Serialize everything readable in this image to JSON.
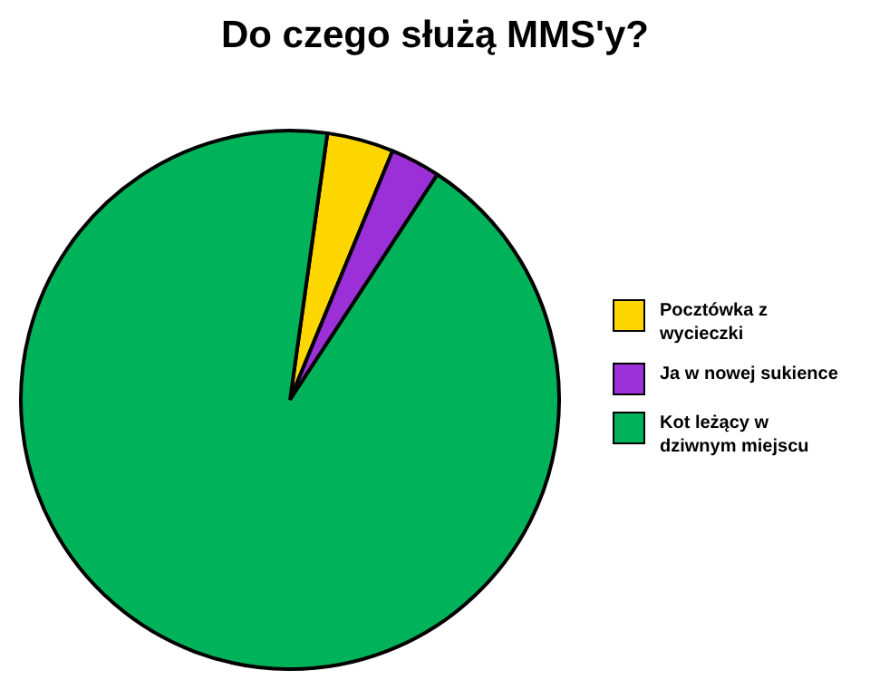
{
  "chart_data": {
    "type": "pie",
    "title": "Do czego służą MMS'y?",
    "categories": [
      "Pocztówka z wycieczki",
      "Ja w nowej sukience",
      "Kot leżący w dziwnym miejscu"
    ],
    "values": [
      4,
      3,
      93
    ],
    "colors": [
      "#ffd700",
      "#9b30d9",
      "#00b35a"
    ],
    "legend": "right"
  }
}
